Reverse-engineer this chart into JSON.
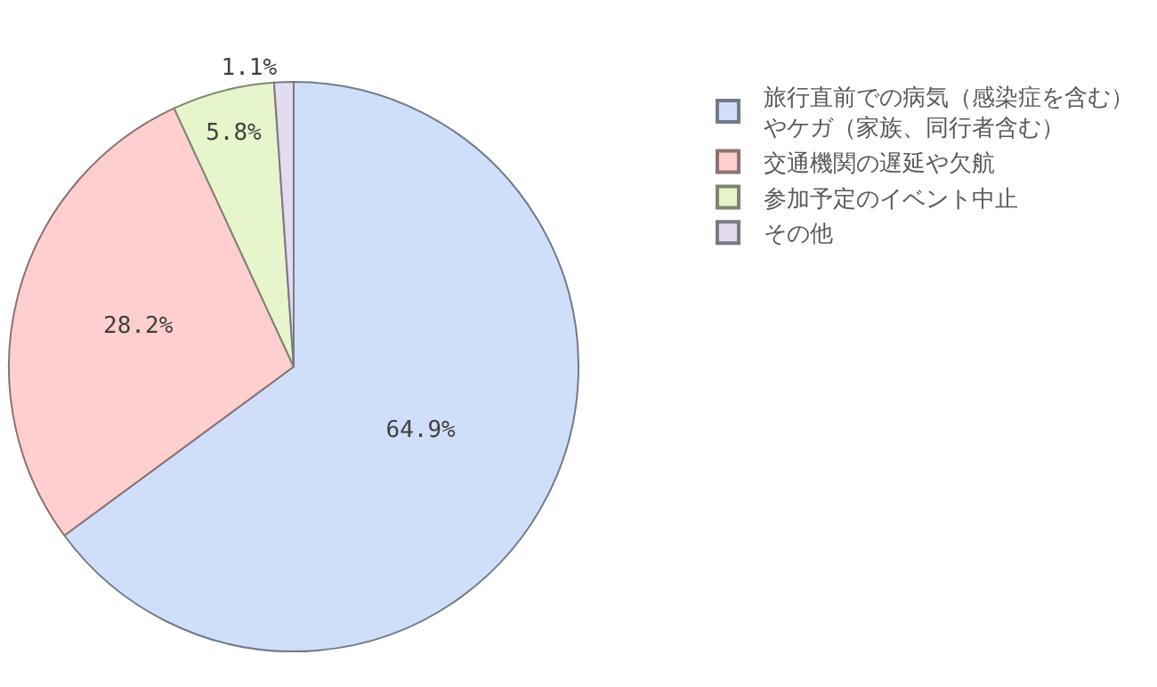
{
  "chart_data": {
    "type": "pie",
    "categories": [
      "旅行直前での病気（感染症を含む）やケガ（家族、同行者含む）",
      "交通機関の遅延や欠航",
      "参加予定のイベント中止",
      "その他"
    ],
    "values": [
      64.9,
      28.2,
      5.8,
      1.1
    ],
    "value_labels": [
      "64.9%",
      "28.2%",
      "5.8%",
      "1.1%"
    ],
    "colors": [
      "#cfdffa",
      "#ffcfcf",
      "#e6f5cc",
      "#e3dbf0"
    ],
    "legend": "top right"
  }
}
